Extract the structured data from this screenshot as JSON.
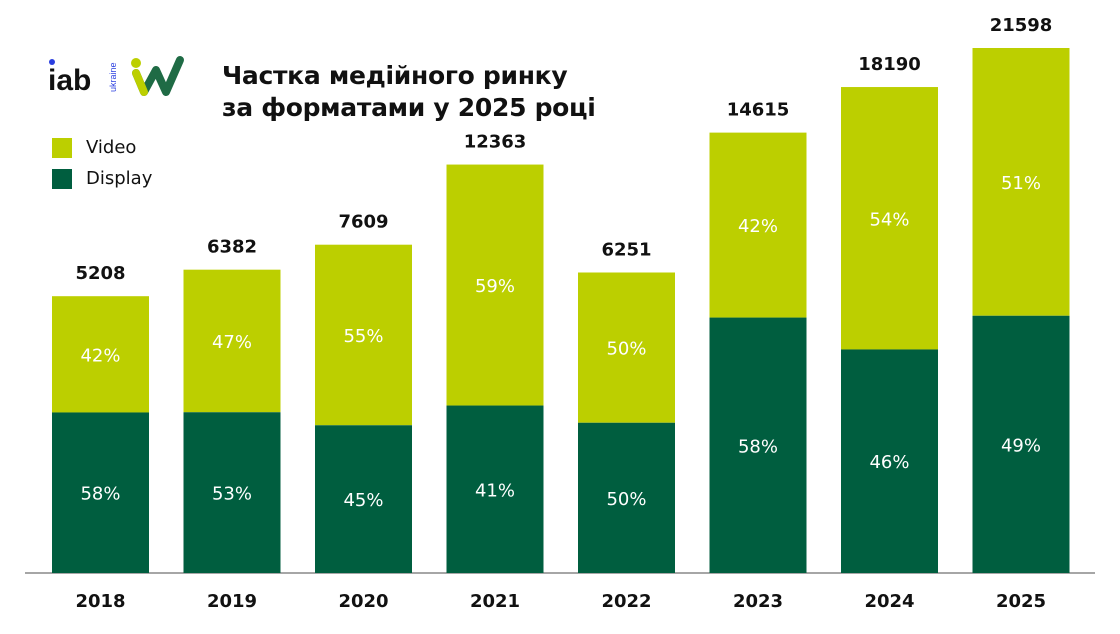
{
  "logo_text": "iab ukraine",
  "title_line1": "Частка медійного ринку",
  "title_line2": "за форматами у 2025 році",
  "colors": {
    "video": "#bccf00",
    "display": "#005e3f",
    "axis": "#888888"
  },
  "chart_data": {
    "type": "bar",
    "stacked": true,
    "categories": [
      "2018",
      "2019",
      "2020",
      "2021",
      "2022",
      "2023",
      "2024",
      "2025"
    ],
    "totals": [
      5208,
      6382,
      7609,
      12363,
      6251,
      14615,
      18190,
      21598
    ],
    "series": [
      {
        "name": "Display",
        "values_pct": [
          58,
          53,
          45,
          41,
          50,
          58,
          46,
          49
        ]
      },
      {
        "name": "Video",
        "values_pct": [
          42,
          47,
          55,
          59,
          50,
          42,
          54,
          51
        ]
      }
    ],
    "legend": [
      "Video",
      "Display"
    ],
    "legend_placement": "top-left",
    "grid": false
  }
}
